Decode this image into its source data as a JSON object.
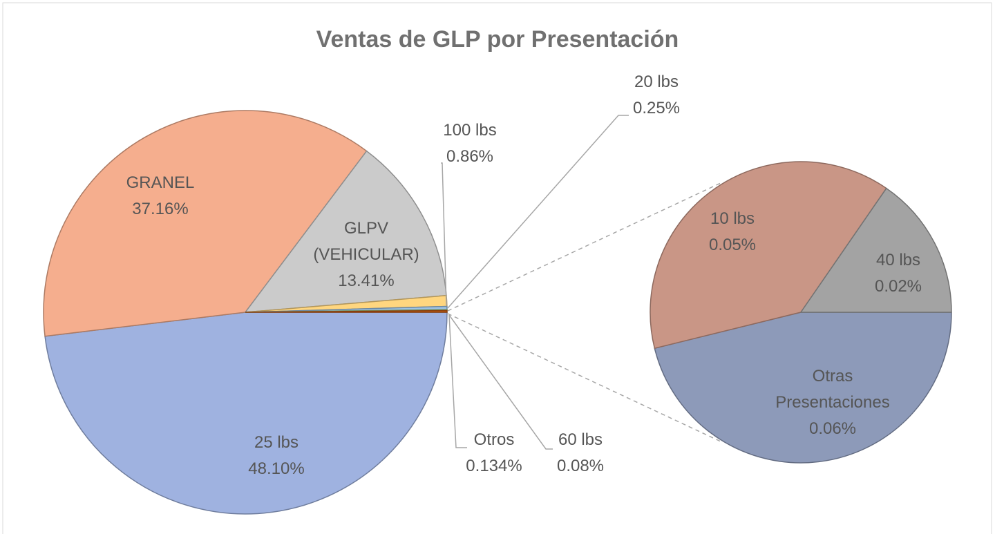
{
  "chart_data": {
    "type": "pie",
    "title": "Ventas de GLP por Presentación",
    "categories": [
      "25 lbs",
      "GRANEL",
      "GLPV (VEHICULAR)",
      "100 lbs",
      "20 lbs",
      "60 lbs",
      "Otros"
    ],
    "values": [
      48.1,
      37.16,
      13.41,
      0.86,
      0.25,
      0.08,
      0.134
    ],
    "value_labels": [
      "48.10%",
      "37.16%",
      "13.41%",
      "0.86%",
      "0.25%",
      "0.08%",
      "0.134%"
    ],
    "colors": [
      "#9fb2e0",
      "#f5ae8e",
      "#cbcbcb",
      "#ffd67f",
      "#9dc3e6",
      "#a9d18e",
      "#c55a11"
    ],
    "secondary": {
      "categories": [
        "Otras Presentaciones",
        "10 lbs",
        "40 lbs"
      ],
      "values": [
        0.06,
        0.05,
        0.02
      ],
      "value_labels": [
        "0.06%",
        "0.05%",
        "0.02%"
      ],
      "colors": [
        "#8d9ab9",
        "#c99686",
        "#a3a3a3"
      ]
    }
  }
}
